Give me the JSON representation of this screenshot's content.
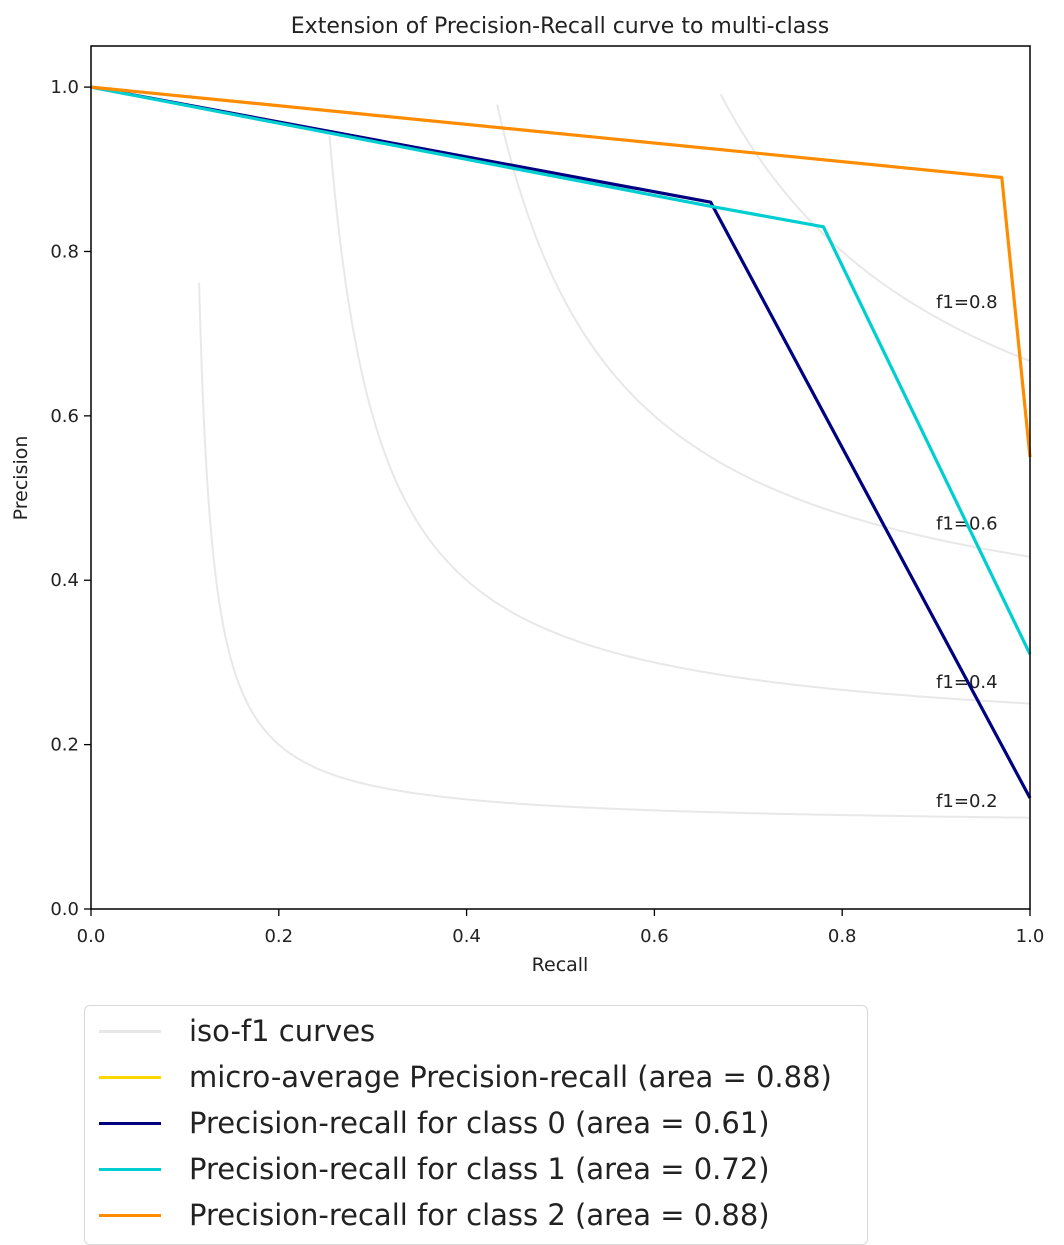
{
  "chart_data": {
    "type": "line",
    "title": "Extension of Precision-Recall curve to multi-class",
    "xlabel": "Recall",
    "ylabel": "Precision",
    "xlim": [
      0.0,
      1.0
    ],
    "ylim": [
      0.0,
      1.05
    ],
    "xticks": [
      "0.0",
      "0.2",
      "0.4",
      "0.6",
      "0.8",
      "1.0"
    ],
    "yticks": [
      "0.0",
      "0.2",
      "0.4",
      "0.6",
      "0.8",
      "1.0"
    ],
    "grid": false,
    "legend_position": "bottom-outside",
    "iso_f1": {
      "color": "#e8e8e8",
      "levels": [
        0.2,
        0.4,
        0.6,
        0.8
      ],
      "labels": [
        "f1=0.2",
        "f1=0.4",
        "f1=0.6",
        "f1=0.8"
      ]
    },
    "series": [
      {
        "name": "micro-average Precision-recall (area = 0.88)",
        "color": "#ffd700",
        "x": [],
        "y": []
      },
      {
        "name": "Precision-recall for class 0 (area = 0.61)",
        "color": "#000080",
        "x": [
          0.0,
          0.66,
          1.0
        ],
        "y": [
          1.0,
          0.86,
          0.135
        ]
      },
      {
        "name": "Precision-recall for class 1 (area = 0.72)",
        "color": "#00ced1",
        "x": [
          0.0,
          0.66,
          0.78,
          1.0
        ],
        "y": [
          1.0,
          0.855,
          0.83,
          0.31
        ]
      },
      {
        "name": "Precision-recall for class 2 (area = 0.88)",
        "color": "#ff8c00",
        "x": [
          0.0,
          0.97,
          1.0
        ],
        "y": [
          1.0,
          0.89,
          0.55
        ]
      }
    ]
  },
  "legend": {
    "items": [
      {
        "label": "iso-f1 curves",
        "color": "#e8e8e8"
      },
      {
        "label": "micro-average Precision-recall (area = 0.88)",
        "color": "#ffd700"
      },
      {
        "label": "Precision-recall for class 0 (area = 0.61)",
        "color": "#000080"
      },
      {
        "label": "Precision-recall for class 1 (area = 0.72)",
        "color": "#00ced1"
      },
      {
        "label": "Precision-recall for class 2 (area = 0.88)",
        "color": "#ff8c00"
      }
    ]
  }
}
